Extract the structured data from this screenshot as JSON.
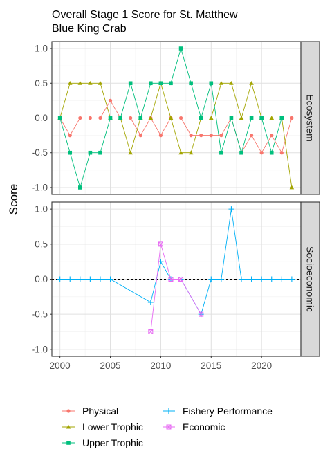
{
  "chart_data": {
    "type": "line",
    "title_lines": [
      "Overall Stage 1 Score for St. Matthew",
      "Blue King Crab"
    ],
    "ylabel": "Score",
    "xlabel": "",
    "xlim": [
      1999.2,
      2023.9
    ],
    "ylim": [
      -1.1,
      1.1
    ],
    "x_ticks": [
      2000,
      2005,
      2010,
      2015,
      2020
    ],
    "y_ticks": [
      -1.0,
      -0.5,
      0.0,
      0.5,
      1.0
    ],
    "y_tick_labels": [
      "-1.0",
      "-0.5",
      "0.0",
      "0.5",
      "1.0"
    ],
    "grid": true,
    "reference_line": 0,
    "legend_position": "bottom",
    "panels": [
      {
        "strip_label": "Ecosystem",
        "series": [
          {
            "name": "Physical",
            "color": "#F8766D",
            "marker": "circle",
            "x": [
              2000,
              2001,
              2002,
              2003,
              2004,
              2005,
              2006,
              2007,
              2008,
              2009,
              2010,
              2011,
              2012,
              2013,
              2014,
              2015,
              2016,
              2017,
              2018,
              2019,
              2020,
              2021,
              2022,
              2023
            ],
            "y": [
              0,
              -0.25,
              0,
              0,
              0,
              0.25,
              0,
              0,
              -0.25,
              0,
              -0.25,
              0,
              0,
              -0.25,
              -0.25,
              -0.25,
              -0.25,
              0,
              -0.5,
              -0.25,
              -0.5,
              -0.25,
              -0.5,
              0
            ]
          },
          {
            "name": "Lower Trophic",
            "color": "#A3A500",
            "marker": "triangle",
            "x": [
              2000,
              2001,
              2002,
              2003,
              2004,
              2005,
              2006,
              2007,
              2008,
              2009,
              2010,
              2011,
              2012,
              2013,
              2014,
              2015,
              2016,
              2017,
              2018,
              2019,
              2020,
              2021,
              2022,
              2023
            ],
            "y": [
              0,
              0.5,
              0.5,
              0.5,
              0.5,
              0,
              0,
              -0.5,
              0,
              0,
              0.5,
              0,
              -0.5,
              -0.5,
              0,
              0,
              0.5,
              0.5,
              0,
              0.5,
              0,
              0,
              0,
              -1
            ]
          },
          {
            "name": "Upper Trophic",
            "color": "#00BF7D",
            "marker": "square",
            "x": [
              2000,
              2001,
              2002,
              2003,
              2004,
              2005,
              2006,
              2007,
              2008,
              2009,
              2010,
              2011,
              2012,
              2013,
              2014,
              2015,
              2016,
              2017,
              2018,
              2019,
              2020,
              2021,
              2022
            ],
            "y": [
              0,
              -0.5,
              -1,
              -0.5,
              -0.5,
              0,
              0,
              0.5,
              0,
              0.5,
              0.5,
              0.5,
              1,
              0.5,
              0,
              0.5,
              -0.5,
              0,
              -0.5,
              0,
              0,
              -0.5,
              0
            ]
          }
        ]
      },
      {
        "strip_label": "Socioeconomic",
        "series": [
          {
            "name": "Fishery Performance",
            "color": "#00B0F6",
            "marker": "plus",
            "x": [
              2000,
              2001,
              2002,
              2003,
              2004,
              2005,
              2009,
              2010,
              2011,
              2012,
              2014,
              2015,
              2016,
              2017,
              2018,
              2019,
              2020,
              2021,
              2022,
              2023
            ],
            "y": [
              0,
              0,
              0,
              0,
              0,
              0,
              -0.33,
              0.25,
              0,
              0,
              -0.5,
              0,
              0,
              1,
              0,
              0,
              0,
              0,
              0,
              0
            ]
          },
          {
            "name": "Economic",
            "color": "#E76BF3",
            "marker": "boxcross",
            "x": [
              2009,
              2010,
              2011,
              2012,
              2014
            ],
            "y": [
              -0.75,
              0.5,
              0,
              0,
              -0.5
            ]
          }
        ]
      }
    ],
    "legend": [
      {
        "name": "Physical",
        "color": "#F8766D",
        "marker": "circle"
      },
      {
        "name": "Lower Trophic",
        "color": "#A3A500",
        "marker": "triangle"
      },
      {
        "name": "Upper Trophic",
        "color": "#00BF7D",
        "marker": "square"
      },
      {
        "name": "Fishery Performance",
        "color": "#00B0F6",
        "marker": "plus"
      },
      {
        "name": "Economic",
        "color": "#E76BF3",
        "marker": "boxcross"
      }
    ]
  }
}
